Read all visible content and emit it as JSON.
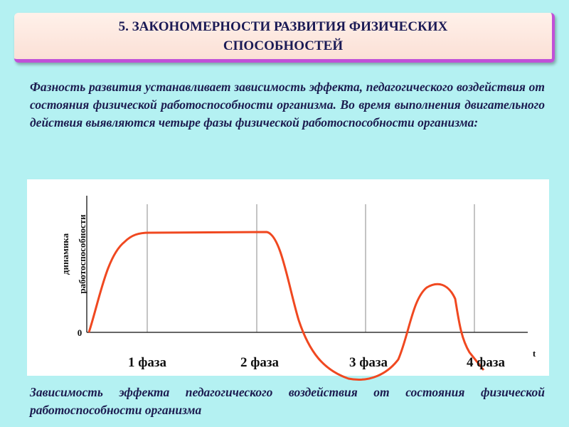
{
  "header": {
    "title": "5. ЗАКОНОМЕРНОСТИ РАЗВИТИЯ ФИЗИЧЕСКИХ СПОСОБНОСТЕЙ"
  },
  "body": {
    "text": "Фазность развития устанавливает зависимость эффекта, педагогического воздействия от состояния физической работоспособности организма. Во время выполнения двигательного действия выявляются четыре фазы физической работоспособности организма:"
  },
  "diagram": {
    "y_label_line1": "динамика",
    "y_label_line2": "работоспособности",
    "zero": "0",
    "x_label": "t",
    "phases": [
      "1 фаза",
      "2 фаза",
      "3 фаза",
      "4 фаза"
    ]
  },
  "caption": {
    "text": "Зависимость эффекта педагогического воздействия от состояния физической работоспособности организма"
  }
}
